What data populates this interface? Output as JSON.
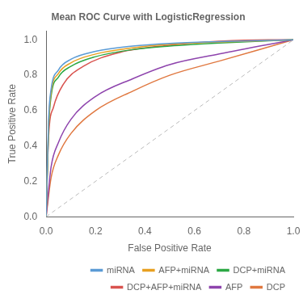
{
  "chart_data": {
    "type": "line",
    "title": "Mean ROC Curve with LogisticRegression",
    "x_label": "False Positive Rate",
    "y_label": "True Positive Rate",
    "xlim": [
      0.0,
      1.0
    ],
    "ylim": [
      0.0,
      1.05
    ],
    "xticks": [
      {
        "value": 0.0,
        "label": "0.0"
      },
      {
        "value": 0.2,
        "label": "0.2"
      },
      {
        "value": 0.4,
        "label": "0.4"
      },
      {
        "value": 0.6,
        "label": "0.6"
      },
      {
        "value": 0.8,
        "label": "0.8"
      },
      {
        "value": 1.0,
        "label": "1.0"
      }
    ],
    "yticks": [
      {
        "value": 0.0,
        "label": "0.0"
      },
      {
        "value": 0.2,
        "label": "0.2"
      },
      {
        "value": 0.4,
        "label": "0.4"
      },
      {
        "value": 0.6,
        "label": "0.6"
      },
      {
        "value": 0.8,
        "label": "0.8"
      },
      {
        "value": 1.0,
        "label": "1.0"
      }
    ],
    "grid": false,
    "legend": "lower right",
    "series": [
      {
        "x": [
          0,
          1
        ],
        "values": [
          0,
          1
        ],
        "color": "#bbbbbb",
        "line_style": "dashed"
      },
      {
        "name": "miRNA",
        "color": "#5b9bd5",
        "x": [
          0,
          0.01,
          0.02,
          0.05,
          0.1,
          0.2,
          0.35,
          0.5,
          0.7,
          1.0
        ],
        "values": [
          0,
          0.55,
          0.72,
          0.83,
          0.89,
          0.935,
          0.965,
          0.98,
          0.99,
          1.0
        ]
      },
      {
        "name": "AFP+miRNA",
        "color": "#e8a020",
        "x": [
          0,
          0.01,
          0.02,
          0.05,
          0.1,
          0.2,
          0.35,
          0.5,
          0.7,
          1.0
        ],
        "values": [
          0,
          0.52,
          0.7,
          0.81,
          0.87,
          0.92,
          0.955,
          0.975,
          0.988,
          1.0
        ]
      },
      {
        "name": "DCP+miRNA",
        "color": "#2ca844",
        "x": [
          0,
          0.01,
          0.02,
          0.05,
          0.1,
          0.2,
          0.35,
          0.5,
          0.7,
          1.0
        ],
        "values": [
          0,
          0.5,
          0.68,
          0.79,
          0.85,
          0.905,
          0.945,
          0.965,
          0.982,
          1.0
        ]
      },
      {
        "name": "DCP+AFP+miRNA",
        "color": "#d9534f",
        "x": [
          0,
          0.01,
          0.03,
          0.07,
          0.15,
          0.3,
          0.5,
          0.7,
          0.9,
          1.0
        ],
        "values": [
          0,
          0.45,
          0.62,
          0.75,
          0.85,
          0.93,
          0.97,
          0.992,
          1.0,
          1.0
        ]
      },
      {
        "name": "AFP",
        "color": "#8e44ad",
        "x": [
          0,
          0.02,
          0.05,
          0.1,
          0.2,
          0.35,
          0.5,
          0.7,
          1.0
        ],
        "values": [
          0,
          0.28,
          0.42,
          0.55,
          0.68,
          0.78,
          0.86,
          0.92,
          1.0
        ]
      },
      {
        "name": "DCP",
        "color": "#e07840",
        "x": [
          0,
          0.02,
          0.05,
          0.1,
          0.2,
          0.35,
          0.5,
          0.7,
          1.0
        ],
        "values": [
          0,
          0.22,
          0.35,
          0.47,
          0.6,
          0.71,
          0.8,
          0.88,
          1.0
        ]
      }
    ]
  }
}
